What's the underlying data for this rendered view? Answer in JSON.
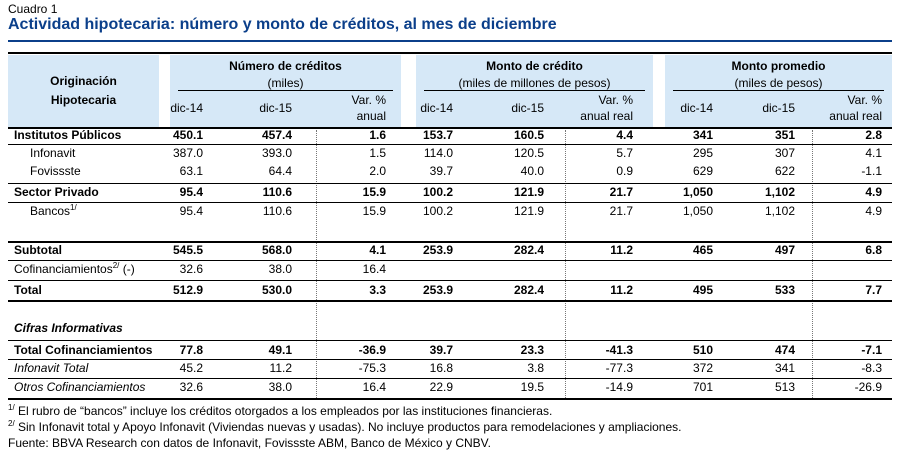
{
  "header": {
    "cuadro": "Cuadro 1",
    "title": "Actividad hipotecaria: número y monto de créditos, al mes de diciembre"
  },
  "table": {
    "row_header": [
      "Originación",
      "Hipotecaria"
    ],
    "groups": [
      {
        "title": "Número de créditos",
        "unit": "(miles)",
        "cols": [
          "dic-14",
          "dic-15",
          "Var. %",
          "anual"
        ]
      },
      {
        "title": "Monto de crédito",
        "unit": "(miles de millones de pesos)",
        "cols": [
          "dic-14",
          "dic-15",
          "Var. %",
          "anual real"
        ]
      },
      {
        "title": "Monto promedio",
        "unit": "(miles de pesos)",
        "cols": [
          "dic-14",
          "dic-15",
          "Var. %",
          "anual real"
        ]
      }
    ],
    "rows": [
      {
        "label": "Institutos Públicos",
        "v": [
          "450.1",
          "457.4",
          "1.6",
          "153.7",
          "160.5",
          "4.4",
          "341",
          "351",
          "2.8"
        ]
      },
      {
        "label": "Infonavit",
        "v": [
          "387.0",
          "393.0",
          "1.5",
          "114.0",
          "120.5",
          "5.7",
          "295",
          "307",
          "4.1"
        ]
      },
      {
        "label": "Fovissste",
        "v": [
          "63.1",
          "64.4",
          "2.0",
          "39.7",
          "40.0",
          "0.9",
          "629",
          "622",
          "-1.1"
        ]
      },
      {
        "label": "Sector Privado",
        "v": [
          "95.4",
          "110.6",
          "15.9",
          "100.2",
          "121.9",
          "21.7",
          "1,050",
          "1,102",
          "4.9"
        ]
      },
      {
        "label": "Bancos",
        "sup": "1/",
        "v": [
          "95.4",
          "110.6",
          "15.9",
          "100.2",
          "121.9",
          "21.7",
          "1,050",
          "1,102",
          "4.9"
        ]
      },
      {
        "label": "Subtotal",
        "v": [
          "545.5",
          "568.0",
          "4.1",
          "253.9",
          "282.4",
          "11.2",
          "465",
          "497",
          "6.8"
        ]
      },
      {
        "label": "Cofinanciamientos",
        "sup": "2/",
        "suffix": " (-)",
        "v": [
          "32.6",
          "38.0",
          "16.4",
          "",
          "",
          "",
          "",
          "",
          ""
        ]
      },
      {
        "label": "Total",
        "v": [
          "512.9",
          "530.0",
          "3.3",
          "253.9",
          "282.4",
          "11.2",
          "495",
          "533",
          "7.7"
        ]
      },
      {
        "label": "Cifras Informativas",
        "v": [
          "",
          "",
          "",
          "",
          "",
          "",
          "",
          "",
          ""
        ]
      },
      {
        "label": "Total Cofinanciamientos",
        "v": [
          "77.8",
          "49.1",
          "-36.9",
          "39.7",
          "23.3",
          "-41.3",
          "510",
          "474",
          "-7.1"
        ]
      },
      {
        "label": "Infonavit Total",
        "v": [
          "45.2",
          "11.2",
          "-75.3",
          "16.8",
          "3.8",
          "-77.3",
          "372",
          "341",
          "-8.3"
        ]
      },
      {
        "label": "Otros Cofinanciamientos",
        "v": [
          "32.6",
          "38.0",
          "16.4",
          "22.9",
          "19.5",
          "-14.9",
          "701",
          "513",
          "-26.9"
        ]
      }
    ]
  },
  "notes": [
    {
      "sup": "1/",
      "text": " El rubro de “bancos” incluye los créditos otorgados a los empleados por las instituciones financieras."
    },
    {
      "sup": "2/",
      "text": " Sin Infonavit total y Apoyo Infonavit (Viviendas nuevas y usadas). No incluye productos para remodelaciones y ampliaciones."
    },
    {
      "sup": "",
      "text": "Fuente: BBVA Research con datos de Infonavit, Fovissste ABM, Banco de México y CNBV."
    }
  ]
}
